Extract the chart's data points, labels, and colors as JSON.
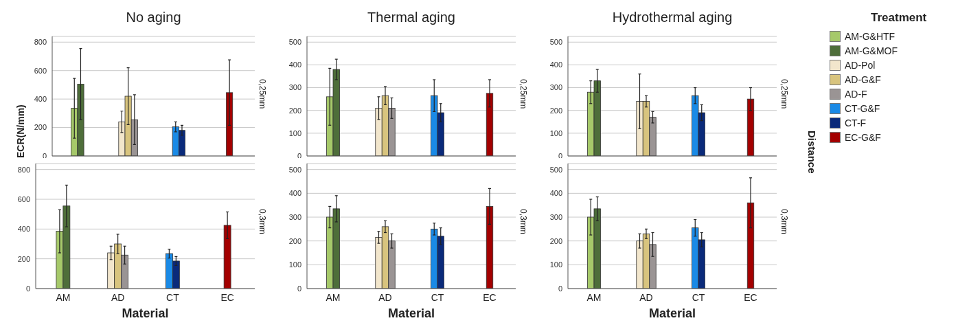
{
  "chart_data": [
    {
      "type": "bar",
      "title": "No aging",
      "ylabel": "ECR(N/mm)",
      "annotations": [
        "0,25mm"
      ],
      "categories": [
        null,
        null,
        null,
        null
      ],
      "ylim": [
        0,
        840
      ],
      "yticks": [
        0,
        200,
        400,
        600,
        800
      ],
      "grid": "y",
      "tick_labels": "y",
      "series": [
        {
          "color": "#a6c96a",
          "values": [
            335,
            null,
            null,
            null
          ],
          "errors": [
            210,
            null,
            null,
            null
          ]
        },
        {
          "color": "#4e6e3a",
          "values": [
            505,
            null,
            null,
            null
          ],
          "errors": [
            250,
            null,
            null,
            null
          ]
        },
        {
          "color": "#f2e6cc",
          "values": [
            null,
            240,
            null,
            null
          ],
          "errors": [
            null,
            75,
            null,
            null
          ]
        },
        {
          "color": "#d8c47e",
          "values": [
            null,
            420,
            null,
            null
          ],
          "errors": [
            null,
            200,
            null,
            null
          ]
        },
        {
          "color": "#9a9494",
          "values": [
            null,
            255,
            null,
            null
          ],
          "errors": [
            null,
            175,
            null,
            null
          ]
        },
        {
          "color": "#1a8ae6",
          "values": [
            null,
            null,
            205,
            null
          ],
          "errors": [
            null,
            null,
            35,
            null
          ]
        },
        {
          "color": "#0a2a7a",
          "values": [
            null,
            null,
            180,
            null
          ],
          "errors": [
            null,
            null,
            35,
            null
          ]
        },
        {
          "color": "#a30000",
          "values": [
            null,
            null,
            null,
            445
          ],
          "errors": [
            null,
            null,
            null,
            230
          ]
        }
      ]
    },
    {
      "type": "bar",
      "title": "Thermal aging",
      "annotations": [
        "0,25mm"
      ],
      "categories": [
        null,
        null,
        null,
        null
      ],
      "ylim": [
        0,
        525
      ],
      "yticks": [
        0,
        100,
        200,
        300,
        400,
        500
      ],
      "grid": "y",
      "tick_labels": "y",
      "series": [
        {
          "color": "#a6c96a",
          "values": [
            260,
            null,
            null,
            null
          ],
          "errors": [
            125,
            null,
            null,
            null
          ]
        },
        {
          "color": "#4e6e3a",
          "values": [
            380,
            null,
            null,
            null
          ],
          "errors": [
            45,
            null,
            null,
            null
          ]
        },
        {
          "color": "#f2e6cc",
          "values": [
            null,
            210,
            null,
            null
          ],
          "errors": [
            null,
            50,
            null,
            null
          ]
        },
        {
          "color": "#d8c47e",
          "values": [
            null,
            265,
            null,
            null
          ],
          "errors": [
            null,
            40,
            null,
            null
          ]
        },
        {
          "color": "#9a9494",
          "values": [
            null,
            210,
            null,
            null
          ],
          "errors": [
            null,
            45,
            null,
            null
          ]
        },
        {
          "color": "#1a8ae6",
          "values": [
            null,
            null,
            265,
            null
          ],
          "errors": [
            null,
            null,
            70,
            null
          ]
        },
        {
          "color": "#0a2a7a",
          "values": [
            null,
            null,
            190,
            null
          ],
          "errors": [
            null,
            null,
            40,
            null
          ]
        },
        {
          "color": "#a30000",
          "values": [
            null,
            null,
            null,
            275
          ],
          "errors": [
            null,
            null,
            null,
            60
          ]
        }
      ]
    },
    {
      "type": "bar",
      "title": "Hydrothermal aging",
      "annotations": [
        "0,25mm"
      ],
      "y2label": "Distance",
      "legend": "right",
      "legend_title": "Treatment",
      "categories": [
        null,
        null,
        null,
        null
      ],
      "ylim": [
        0,
        525
      ],
      "yticks": [
        0,
        100,
        200,
        300,
        400,
        500
      ],
      "grid": "y",
      "tick_labels": "y",
      "series": [
        {
          "name": "AM-G&HTF",
          "color": "#a6c96a",
          "values": [
            280,
            null,
            null,
            null
          ],
          "errors": [
            50,
            null,
            null,
            null
          ]
        },
        {
          "name": "AM-G&MOF",
          "color": "#4e6e3a",
          "values": [
            330,
            null,
            null,
            null
          ],
          "errors": [
            50,
            null,
            null,
            null
          ]
        },
        {
          "name": "AD-Pol",
          "color": "#f2e6cc",
          "values": [
            null,
            240,
            null,
            null
          ],
          "errors": [
            null,
            120,
            null,
            null
          ]
        },
        {
          "name": "AD-G&F",
          "color": "#d8c47e",
          "values": [
            null,
            240,
            null,
            null
          ],
          "errors": [
            null,
            25,
            null,
            null
          ]
        },
        {
          "name": "AD-F",
          "color": "#9a9494",
          "values": [
            null,
            170,
            null,
            null
          ],
          "errors": [
            null,
            25,
            null,
            null
          ]
        },
        {
          "name": "CT-G&F",
          "color": "#1a8ae6",
          "values": [
            null,
            null,
            265,
            null
          ],
          "errors": [
            null,
            null,
            35,
            null
          ]
        },
        {
          "name": "CT-F",
          "color": "#0a2a7a",
          "values": [
            null,
            null,
            190,
            null
          ],
          "errors": [
            null,
            null,
            35,
            null
          ]
        },
        {
          "name": "EC-G&F",
          "color": "#a30000",
          "values": [
            null,
            null,
            null,
            250
          ],
          "errors": [
            null,
            null,
            null,
            50
          ]
        }
      ]
    },
    {
      "type": "bar",
      "xlabel": "Material",
      "annotations": [
        "0,3mm"
      ],
      "categories": [
        "AM",
        "AD",
        "CT",
        "EC"
      ],
      "ylim": [
        0,
        840
      ],
      "yticks": [
        0,
        200,
        400,
        600,
        800
      ],
      "grid": "y",
      "series": [
        {
          "color": "#a6c96a",
          "values": [
            385,
            null,
            null,
            null
          ],
          "errors": [
            145,
            null,
            null,
            null
          ]
        },
        {
          "color": "#4e6e3a",
          "values": [
            555,
            null,
            null,
            null
          ],
          "errors": [
            140,
            null,
            null,
            null
          ]
        },
        {
          "color": "#f2e6cc",
          "values": [
            null,
            240,
            null,
            null
          ],
          "errors": [
            null,
            45,
            null,
            null
          ]
        },
        {
          "color": "#d8c47e",
          "values": [
            null,
            300,
            null,
            null
          ],
          "errors": [
            null,
            65,
            null,
            null
          ]
        },
        {
          "color": "#9a9494",
          "values": [
            null,
            225,
            null,
            null
          ],
          "errors": [
            null,
            60,
            null,
            null
          ]
        },
        {
          "color": "#1a8ae6",
          "values": [
            null,
            null,
            235,
            null
          ],
          "errors": [
            null,
            null,
            30,
            null
          ]
        },
        {
          "color": "#0a2a7a",
          "values": [
            null,
            null,
            185,
            null
          ],
          "errors": [
            null,
            null,
            30,
            null
          ]
        },
        {
          "color": "#a30000",
          "values": [
            null,
            null,
            null,
            425
          ],
          "errors": [
            null,
            null,
            null,
            90
          ]
        }
      ]
    },
    {
      "type": "bar",
      "xlabel": "Material",
      "annotations": [
        "0,3mm"
      ],
      "categories": [
        "AM",
        "AD",
        "CT",
        "EC"
      ],
      "ylim": [
        0,
        525
      ],
      "yticks": [
        0,
        100,
        200,
        300,
        400,
        500
      ],
      "grid": "y",
      "series": [
        {
          "color": "#a6c96a",
          "values": [
            300,
            null,
            null,
            null
          ],
          "errors": [
            45,
            null,
            null,
            null
          ]
        },
        {
          "color": "#4e6e3a",
          "values": [
            335,
            null,
            null,
            null
          ],
          "errors": [
            55,
            null,
            null,
            null
          ]
        },
        {
          "color": "#f2e6cc",
          "values": [
            null,
            215,
            null,
            null
          ],
          "errors": [
            null,
            25,
            null,
            null
          ]
        },
        {
          "color": "#d8c47e",
          "values": [
            null,
            260,
            null,
            null
          ],
          "errors": [
            null,
            25,
            null,
            null
          ]
        },
        {
          "color": "#9a9494",
          "values": [
            null,
            200,
            null,
            null
          ],
          "errors": [
            null,
            30,
            null,
            null
          ]
        },
        {
          "color": "#1a8ae6",
          "values": [
            null,
            null,
            250,
            null
          ],
          "errors": [
            null,
            null,
            25,
            null
          ]
        },
        {
          "color": "#0a2a7a",
          "values": [
            null,
            null,
            220,
            null
          ],
          "errors": [
            null,
            null,
            35,
            null
          ]
        },
        {
          "color": "#a30000",
          "values": [
            null,
            null,
            null,
            345
          ],
          "errors": [
            null,
            null,
            null,
            75
          ]
        }
      ]
    },
    {
      "type": "bar",
      "xlabel": "Material",
      "annotations": [
        "0,3mm"
      ],
      "categories": [
        "AM",
        "AD",
        "CT",
        "EC"
      ],
      "ylim": [
        0,
        525
      ],
      "yticks": [
        0,
        100,
        200,
        300,
        400,
        500
      ],
      "grid": "y",
      "series": [
        {
          "color": "#a6c96a",
          "values": [
            300,
            null,
            null,
            null
          ],
          "errors": [
            75,
            null,
            null,
            null
          ]
        },
        {
          "color": "#4e6e3a",
          "values": [
            335,
            null,
            null,
            null
          ],
          "errors": [
            50,
            null,
            null,
            null
          ]
        },
        {
          "color": "#f2e6cc",
          "values": [
            null,
            200,
            null,
            null
          ],
          "errors": [
            null,
            30,
            null,
            null
          ]
        },
        {
          "color": "#d8c47e",
          "values": [
            null,
            230,
            null,
            null
          ],
          "errors": [
            null,
            20,
            null,
            null
          ]
        },
        {
          "color": "#9a9494",
          "values": [
            null,
            185,
            null,
            null
          ],
          "errors": [
            null,
            50,
            null,
            null
          ]
        },
        {
          "color": "#1a8ae6",
          "values": [
            null,
            null,
            255,
            null
          ],
          "errors": [
            null,
            null,
            35,
            null
          ]
        },
        {
          "color": "#0a2a7a",
          "values": [
            null,
            null,
            205,
            null
          ],
          "errors": [
            null,
            null,
            30,
            null
          ]
        },
        {
          "color": "#a30000",
          "values": [
            null,
            null,
            null,
            360
          ],
          "errors": [
            null,
            null,
            null,
            105
          ]
        }
      ]
    }
  ]
}
